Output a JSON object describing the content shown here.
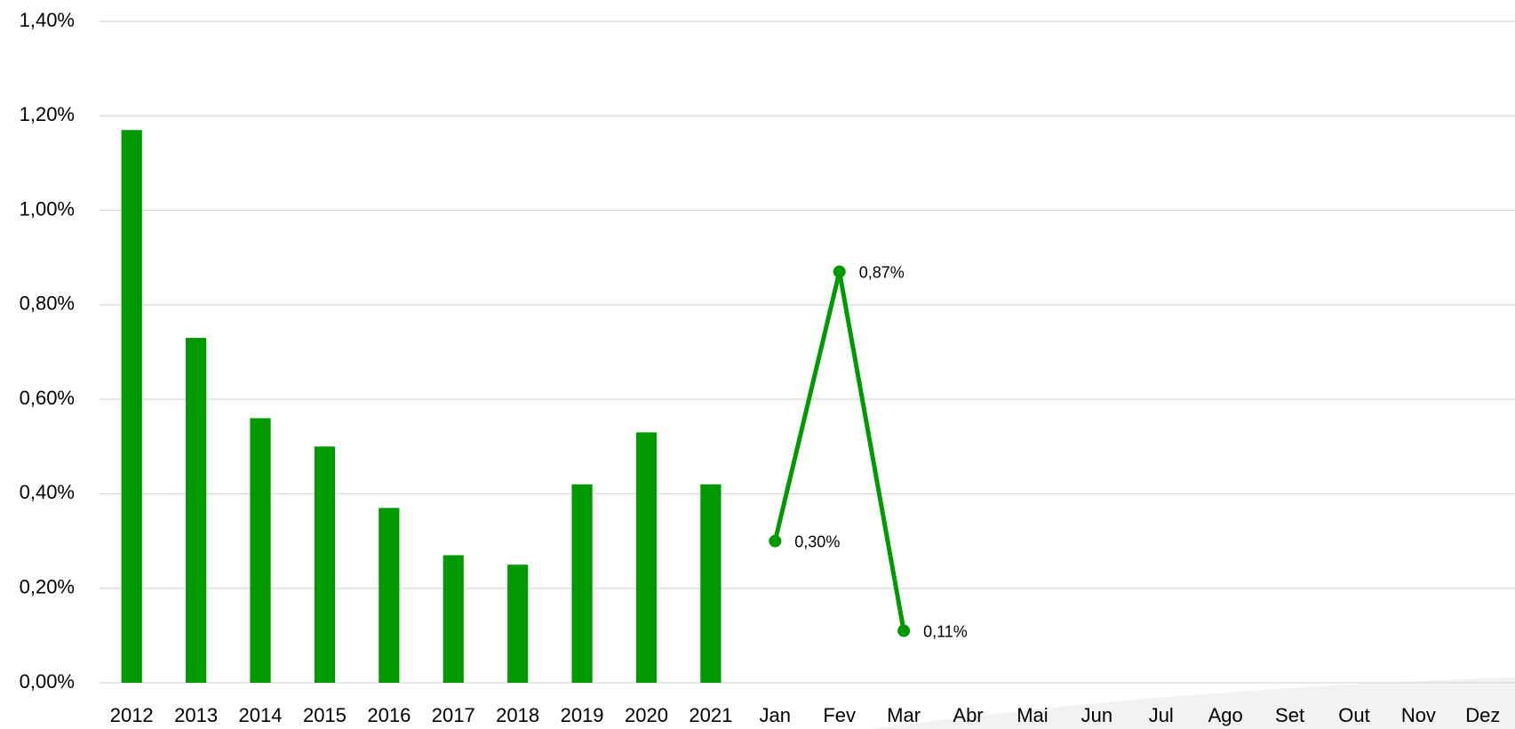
{
  "chart_data": {
    "type": "bar_line",
    "categories": [
      "2012",
      "2013",
      "2014",
      "2015",
      "2016",
      "2017",
      "2018",
      "2019",
      "2020",
      "2021",
      "Jan",
      "Fev",
      "Mar",
      "Abr",
      "Mai",
      "Jun",
      "Jul",
      "Ago",
      "Set",
      "Out",
      "Nov",
      "Dez"
    ],
    "series": [
      {
        "type": "bar",
        "color": "#009900",
        "values": [
          1.17,
          0.73,
          0.56,
          0.5,
          0.37,
          0.27,
          0.25,
          0.42,
          0.53,
          0.42,
          null,
          null,
          null,
          null,
          null,
          null,
          null,
          null,
          null,
          null,
          null,
          null
        ]
      },
      {
        "type": "line",
        "color": "#009900",
        "values": [
          null,
          null,
          null,
          null,
          null,
          null,
          null,
          null,
          null,
          null,
          0.3,
          0.87,
          0.11,
          null,
          null,
          null,
          null,
          null,
          null,
          null,
          null,
          null
        ],
        "value_labels": [
          null,
          null,
          null,
          null,
          null,
          null,
          null,
          null,
          null,
          null,
          "0,30%",
          "0,87%",
          "0,11%",
          null,
          null,
          null,
          null,
          null,
          null,
          null,
          null,
          null
        ]
      }
    ],
    "ylim": [
      0,
      1.4
    ],
    "yticks": [
      {
        "value": 0,
        "label": "0,00%"
      },
      {
        "value": 0.2,
        "label": "0,20%"
      },
      {
        "value": 0.4,
        "label": "0,40%"
      },
      {
        "value": 0.6,
        "label": "0,60%"
      },
      {
        "value": 0.8,
        "label": "0,80%"
      },
      {
        "value": 1.0,
        "label": "1,00%"
      },
      {
        "value": 1.2,
        "label": "1,20%"
      },
      {
        "value": 1.4,
        "label": "1,40%"
      }
    ],
    "grid": true
  }
}
